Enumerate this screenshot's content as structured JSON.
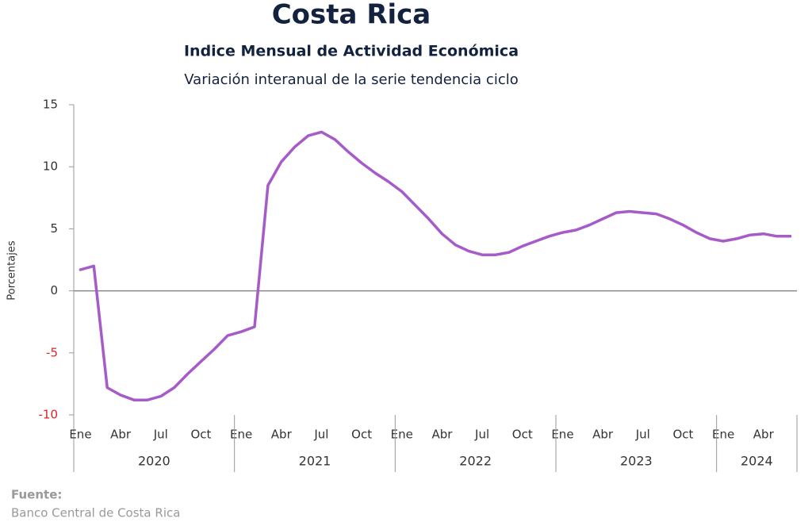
{
  "chart_data": {
    "type": "line",
    "title": "Costa Rica",
    "subtitle": "Indice Mensual de  Actividad Económica",
    "subtitle2": "Variación interanual de la serie tendencia ciclo",
    "y_label": "Porcentajes",
    "source_label": "Fuente:",
    "source": "Banco Central de Costa Rica",
    "categories": [
      "Ene",
      null,
      null,
      "Abr",
      null,
      null,
      "Jul",
      null,
      null,
      "Oct",
      null,
      null,
      "Ene",
      null,
      null,
      "Abr",
      null,
      null,
      "Jul",
      null,
      null,
      "Oct",
      null,
      null,
      "Ene",
      null,
      null,
      "Abr",
      null,
      null,
      "Jul",
      null,
      null,
      "Oct",
      null,
      null,
      "Ene",
      null,
      null,
      "Abr",
      null,
      null,
      "Jul",
      null,
      null,
      "Oct",
      null,
      null,
      "Ene",
      null,
      null,
      "Abr",
      null,
      null
    ],
    "years": [
      "2020",
      "2021",
      "2022",
      "2023",
      "2024"
    ],
    "series": [
      {
        "name": "Variación interanual",
        "color": "#a65bc8",
        "values": [
          1.7,
          2.0,
          -7.8,
          -8.4,
          -8.8,
          -8.8,
          -8.5,
          -7.8,
          -6.7,
          -5.7,
          -4.7,
          -3.6,
          -3.3,
          -2.9,
          8.5,
          10.4,
          11.6,
          12.5,
          12.8,
          12.2,
          11.2,
          10.3,
          9.5,
          8.8,
          8.0,
          6.9,
          5.8,
          4.6,
          3.7,
          3.2,
          2.9,
          2.9,
          3.1,
          3.6,
          4.0,
          4.4,
          4.7,
          4.9,
          5.3,
          5.8,
          6.3,
          6.4,
          6.3,
          6.2,
          5.8,
          5.3,
          4.7,
          4.2,
          4.0,
          4.2,
          4.5,
          4.6,
          4.4,
          4.4
        ]
      }
    ],
    "ylim": [
      -10,
      15
    ],
    "yticks": [
      -10,
      -5,
      0,
      5,
      10,
      15
    ],
    "negative_tick_color": "#e02424",
    "title_color": "#13223f"
  }
}
